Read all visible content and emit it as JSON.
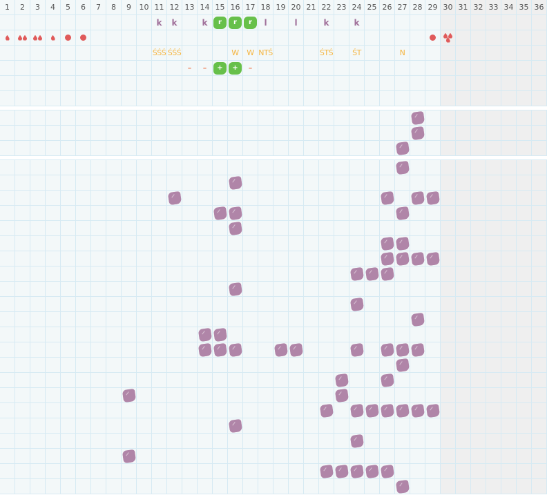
{
  "days": [
    "1",
    "2",
    "3",
    "4",
    "5",
    "6",
    "7",
    "8",
    "9",
    "10",
    "11",
    "12",
    "13",
    "14",
    "15",
    "16",
    "17",
    "18",
    "19",
    "20",
    "21",
    "22",
    "23",
    "24",
    "25",
    "26",
    "27",
    "28",
    "29",
    "30",
    "31",
    "32",
    "33",
    "34",
    "35",
    "36"
  ],
  "first_inactive_day": 30,
  "colors": {
    "purple_blob": "#b085a8",
    "green_blob": "#67c04a",
    "drop": "#e05a5a",
    "yellow_text": "#f5b540",
    "dash": "#ee8a66",
    "letter": "#a0709a"
  },
  "section1": {
    "row_letters": [
      {
        "day": 11,
        "text": "k"
      },
      {
        "day": 12,
        "text": "k"
      },
      {
        "day": 14,
        "text": "k"
      },
      {
        "day": 15,
        "green": "r"
      },
      {
        "day": 16,
        "green": "r"
      },
      {
        "day": 17,
        "green": "r"
      },
      {
        "day": 18,
        "text": "l"
      },
      {
        "day": 20,
        "text": "l"
      },
      {
        "day": 22,
        "text": "k"
      },
      {
        "day": 24,
        "text": "k"
      }
    ],
    "row_drops": [
      {
        "day": 1,
        "icon": "drop",
        "count": 1
      },
      {
        "day": 2,
        "icon": "drop",
        "count": 2
      },
      {
        "day": 3,
        "icon": "drop",
        "count": 2
      },
      {
        "day": 4,
        "icon": "drop",
        "count": 1
      },
      {
        "day": 5,
        "icon": "dot"
      },
      {
        "day": 6,
        "icon": "dot"
      },
      {
        "day": 29,
        "icon": "dot"
      },
      {
        "day": 30,
        "icon": "triple-drop"
      }
    ],
    "row_codes": [
      {
        "day": 11,
        "text": "ŚŚŚ"
      },
      {
        "day": 12,
        "text": "ŚŚŚ"
      },
      {
        "day": 16,
        "text": "W"
      },
      {
        "day": 17,
        "text": "W"
      },
      {
        "day": 18,
        "text": "NTŚ"
      },
      {
        "day": 22,
        "text": "ŚTŚ"
      },
      {
        "day": 24,
        "text": "ŚT"
      },
      {
        "day": 27,
        "text": "N"
      }
    ],
    "row_marks": [
      {
        "day": 13,
        "text": "–"
      },
      {
        "day": 14,
        "text": "–"
      },
      {
        "day": 15,
        "green": "+"
      },
      {
        "day": 16,
        "green": "+"
      },
      {
        "day": 17,
        "text": "–"
      }
    ]
  },
  "section2": [
    [
      28
    ],
    [
      28
    ],
    [
      27
    ]
  ],
  "section3": [
    [
      27
    ],
    [
      16
    ],
    [
      12,
      26,
      28,
      29
    ],
    [
      15,
      16,
      27
    ],
    [
      16
    ],
    [
      26,
      27
    ],
    [
      26,
      27,
      28,
      29
    ],
    [
      24,
      25,
      26
    ],
    [
      16
    ],
    [
      24
    ],
    [
      28
    ],
    [
      14,
      15
    ],
    [
      14,
      15,
      16,
      19,
      20,
      24,
      26,
      27,
      28
    ],
    [
      27
    ],
    [
      23,
      26
    ],
    [
      9,
      23
    ],
    [
      22,
      24,
      25,
      26,
      27,
      28,
      29
    ],
    [
      16
    ],
    [
      24
    ],
    [
      9
    ],
    [
      22,
      23,
      24,
      25,
      26
    ],
    [
      27
    ]
  ]
}
